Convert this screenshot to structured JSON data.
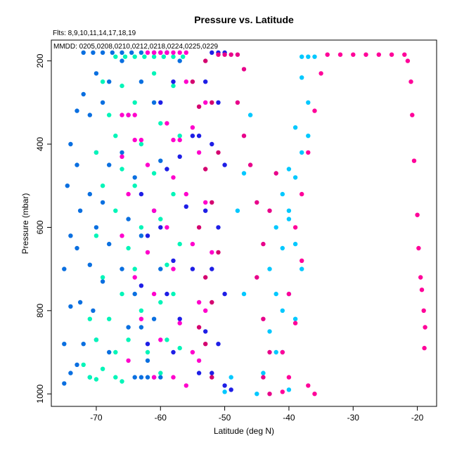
{
  "chart_data": {
    "type": "scatter",
    "title": "Pressure vs. Latitude",
    "subtitle": "Flts: 8,9,10,11,14,17,18,19",
    "legend_text": "MMDD: 0205,0208,0210,0212,0218,0224,0225,0229",
    "xlabel": "Latitude (deg N)",
    "ylabel": "Pressure (mbar)",
    "xlim": [
      -77,
      -17
    ],
    "ylim": [
      1030,
      150
    ],
    "y_reversed": true,
    "x_ticks": [
      -70,
      -60,
      -50,
      -40,
      -30,
      -20
    ],
    "y_ticks": [
      200,
      400,
      600,
      800,
      1000
    ],
    "series": [
      {
        "name": "0205",
        "color": "#0A6FE0",
        "points": [
          [
            -72,
            180
          ],
          [
            -70.5,
            180
          ],
          [
            -69,
            180
          ],
          [
            -67.5,
            180
          ],
          [
            -66,
            180
          ],
          [
            -64.5,
            180
          ],
          [
            -63,
            180
          ],
          [
            -73,
            320
          ],
          [
            -74,
            400
          ],
          [
            -74.5,
            500
          ],
          [
            -74,
            620
          ],
          [
            -75,
            700
          ],
          [
            -74,
            790
          ],
          [
            -75,
            880
          ],
          [
            -74,
            950
          ],
          [
            -75,
            975
          ],
          [
            -72,
            280
          ],
          [
            -73,
            450
          ],
          [
            -72.5,
            560
          ],
          [
            -73,
            650
          ],
          [
            -72.5,
            780
          ],
          [
            -72,
            880
          ],
          [
            -73,
            930
          ],
          [
            -70,
            230
          ],
          [
            -71,
            330
          ],
          [
            -70,
            420
          ],
          [
            -71,
            520
          ],
          [
            -70,
            600
          ],
          [
            -71,
            690
          ],
          [
            -70.5,
            800
          ],
          [
            -70,
            870
          ],
          [
            -71,
            960
          ],
          [
            -68,
            250
          ],
          [
            -69,
            300
          ],
          [
            -68,
            450
          ],
          [
            -69,
            540
          ],
          [
            -68,
            640
          ],
          [
            -69,
            730
          ],
          [
            -68,
            900
          ],
          [
            -66,
            200
          ],
          [
            -65,
            330
          ],
          [
            -66,
            420
          ],
          [
            -65,
            580
          ],
          [
            -66,
            700
          ],
          [
            -65,
            840
          ],
          [
            -64,
            960
          ],
          [
            -63,
            960
          ],
          [
            -62,
            960
          ],
          [
            -63,
            250
          ],
          [
            -64,
            480
          ],
          [
            -63,
            620
          ],
          [
            -64,
            760
          ],
          [
            -63,
            840
          ],
          [
            -62,
            920
          ],
          [
            -61,
            960
          ],
          [
            -60,
            960
          ],
          [
            -61,
            300
          ],
          [
            -60,
            440
          ],
          [
            -61,
            560
          ],
          [
            -60,
            700
          ],
          [
            -61,
            820
          ],
          [
            -59,
            180
          ],
          [
            -57,
            200
          ]
        ]
      },
      {
        "name": "0208",
        "color": "#00F5B8",
        "points": [
          [
            -67,
            190
          ],
          [
            -65.5,
            190
          ],
          [
            -64,
            190
          ],
          [
            -62.5,
            190
          ],
          [
            -61,
            190
          ],
          [
            -59.5,
            190
          ],
          [
            -58,
            190
          ],
          [
            -56.5,
            190
          ],
          [
            -69,
            250
          ],
          [
            -68,
            330
          ],
          [
            -70,
            420
          ],
          [
            -69,
            500
          ],
          [
            -70,
            620
          ],
          [
            -69,
            720
          ],
          [
            -71,
            820
          ],
          [
            -70,
            870
          ],
          [
            -72,
            930
          ],
          [
            -71,
            960
          ],
          [
            -70,
            965
          ],
          [
            -68,
            820
          ],
          [
            -67,
            900
          ],
          [
            -69,
            940
          ],
          [
            -67,
            960
          ],
          [
            -66,
            970
          ],
          [
            -66,
            260
          ],
          [
            -67,
            380
          ],
          [
            -66,
            460
          ],
          [
            -67,
            560
          ],
          [
            -65,
            650
          ],
          [
            -66,
            760
          ],
          [
            -65,
            870
          ],
          [
            -64,
            300
          ],
          [
            -63,
            400
          ],
          [
            -64,
            500
          ],
          [
            -63,
            600
          ],
          [
            -64,
            700
          ],
          [
            -63,
            800
          ],
          [
            -62,
            900
          ],
          [
            -61,
            230
          ],
          [
            -60,
            350
          ],
          [
            -61,
            470
          ],
          [
            -60,
            580
          ],
          [
            -59,
            690
          ],
          [
            -60,
            780
          ],
          [
            -59,
            870
          ],
          [
            -60,
            950
          ],
          [
            -58,
            260
          ],
          [
            -57,
            380
          ],
          [
            -58,
            520
          ],
          [
            -57,
            640
          ],
          [
            -58,
            760
          ],
          [
            -57,
            890
          ]
        ]
      },
      {
        "name": "0210",
        "color": "#1E1EE6",
        "points": [
          [
            -61,
            180
          ],
          [
            -60,
            180
          ],
          [
            -59,
            180
          ],
          [
            -52,
            180
          ],
          [
            -51,
            180
          ],
          [
            -50,
            180
          ],
          [
            -55,
            380
          ],
          [
            -54,
            380
          ],
          [
            -56,
            550
          ],
          [
            -55,
            700
          ],
          [
            -54,
            950
          ],
          [
            -63,
            520
          ],
          [
            -62,
            620
          ],
          [
            -63,
            740
          ],
          [
            -62,
            880
          ],
          [
            -60,
            300
          ],
          [
            -59,
            460
          ],
          [
            -60,
            600
          ],
          [
            -59,
            760
          ],
          [
            -58,
            900
          ],
          [
            -58,
            250
          ],
          [
            -57,
            430
          ],
          [
            -58,
            680
          ],
          [
            -57,
            820
          ],
          [
            -53,
            250
          ],
          [
            -52,
            400
          ],
          [
            -53,
            560
          ],
          [
            -52,
            700
          ],
          [
            -53,
            850
          ],
          [
            -52,
            950
          ],
          [
            -51,
            300
          ],
          [
            -50,
            450
          ],
          [
            -51,
            600
          ],
          [
            -50,
            760
          ],
          [
            -51,
            880
          ],
          [
            -50,
            980
          ],
          [
            -49,
            990
          ]
        ]
      },
      {
        "name": "0212",
        "color": "#00C8FF",
        "points": [
          [
            -37,
            190
          ],
          [
            -38,
            190
          ],
          [
            -36,
            190
          ],
          [
            -38,
            240
          ],
          [
            -37,
            300
          ],
          [
            -39,
            360
          ],
          [
            -38,
            420
          ],
          [
            -40,
            460
          ],
          [
            -41,
            520
          ],
          [
            -40,
            560
          ],
          [
            -42,
            600
          ],
          [
            -41,
            650
          ],
          [
            -43,
            700
          ],
          [
            -42,
            760
          ],
          [
            -41,
            800
          ],
          [
            -43,
            850
          ],
          [
            -42,
            900
          ],
          [
            -44,
            950
          ],
          [
            -45,
            1000
          ],
          [
            -37,
            380
          ],
          [
            -39,
            480
          ],
          [
            -40,
            580
          ],
          [
            -39,
            640
          ],
          [
            -38,
            700
          ],
          [
            -40,
            760
          ],
          [
            -39,
            820
          ],
          [
            -41,
            900
          ],
          [
            -40,
            990
          ],
          [
            -46,
            330
          ],
          [
            -47,
            470
          ],
          [
            -48,
            560
          ],
          [
            -47,
            760
          ],
          [
            -49,
            960
          ],
          [
            -50,
            995
          ]
        ]
      },
      {
        "name": "0218",
        "color": "#FF0099",
        "points": [
          [
            -34,
            185
          ],
          [
            -32,
            185
          ],
          [
            -30,
            185
          ],
          [
            -28,
            185
          ],
          [
            -26,
            185
          ],
          [
            -24,
            185
          ],
          [
            -22,
            185
          ],
          [
            -21.5,
            200
          ],
          [
            -21,
            250
          ],
          [
            -20.8,
            330
          ],
          [
            -20.5,
            440
          ],
          [
            -20,
            570
          ],
          [
            -19.8,
            650
          ],
          [
            -19.5,
            720
          ],
          [
            -19.3,
            750
          ],
          [
            -19,
            800
          ],
          [
            -18.8,
            840
          ],
          [
            -18.9,
            890
          ],
          [
            -35,
            230
          ],
          [
            -36,
            320
          ],
          [
            -37,
            420
          ],
          [
            -38,
            520
          ],
          [
            -39,
            600
          ],
          [
            -38,
            680
          ],
          [
            -40,
            760
          ],
          [
            -39,
            830
          ],
          [
            -41,
            900
          ],
          [
            -40,
            960
          ],
          [
            -41,
            995
          ],
          [
            -37,
            980
          ],
          [
            -36,
            1000
          ]
        ]
      },
      {
        "name": "0224",
        "color": "#E8008A",
        "points": [
          [
            -48,
            185
          ],
          [
            -49,
            185
          ],
          [
            -50,
            185
          ],
          [
            -51,
            185
          ],
          [
            -47,
            220
          ],
          [
            -48,
            300
          ],
          [
            -47,
            380
          ],
          [
            -46,
            450
          ],
          [
            -45,
            540
          ],
          [
            -44,
            640
          ],
          [
            -45,
            720
          ],
          [
            -44,
            820
          ],
          [
            -43,
            900
          ],
          [
            -44,
            960
          ],
          [
            -43,
            1000
          ],
          [
            -42,
            470
          ],
          [
            -43,
            560
          ]
        ]
      },
      {
        "name": "0225",
        "color": "#FF00CC",
        "points": [
          [
            -62,
            180
          ],
          [
            -61,
            180
          ],
          [
            -60,
            180
          ],
          [
            -59,
            180
          ],
          [
            -58,
            180
          ],
          [
            -57,
            180
          ],
          [
            -56,
            180
          ],
          [
            -66,
            330
          ],
          [
            -65,
            330
          ],
          [
            -64,
            330
          ],
          [
            -64,
            390
          ],
          [
            -63,
            390
          ],
          [
            -58,
            390
          ],
          [
            -57,
            390
          ],
          [
            -66,
            430
          ],
          [
            -65,
            520
          ],
          [
            -66,
            620
          ],
          [
            -64,
            720
          ],
          [
            -63,
            820
          ],
          [
            -65,
            920
          ],
          [
            -62,
            450
          ],
          [
            -61,
            560
          ],
          [
            -62,
            660
          ],
          [
            -61,
            760
          ],
          [
            -60,
            870
          ],
          [
            -61,
            960
          ],
          [
            -59,
            350
          ],
          [
            -58,
            480
          ],
          [
            -59,
            600
          ],
          [
            -58,
            700
          ],
          [
            -57,
            830
          ],
          [
            -58,
            960
          ],
          [
            -56,
            980
          ],
          [
            -56,
            250
          ],
          [
            -55,
            360
          ],
          [
            -56,
            520
          ],
          [
            -55,
            640
          ],
          [
            -54,
            780
          ],
          [
            -55,
            900
          ],
          [
            -53,
            300
          ],
          [
            -54,
            420
          ],
          [
            -53,
            540
          ],
          [
            -52,
            660
          ],
          [
            -53,
            800
          ],
          [
            -54,
            920
          ]
        ]
      },
      {
        "name": "0229",
        "color": "#D4006F",
        "points": [
          [
            -53,
            200
          ],
          [
            -52,
            300
          ],
          [
            -51,
            420
          ],
          [
            -52,
            540
          ],
          [
            -51,
            660
          ],
          [
            -52,
            780
          ],
          [
            -53,
            880
          ],
          [
            -52,
            960
          ],
          [
            -55,
            250
          ],
          [
            -54,
            310
          ],
          [
            -53,
            460
          ],
          [
            -54,
            600
          ],
          [
            -53,
            720
          ],
          [
            -54,
            840
          ]
        ]
      }
    ]
  }
}
